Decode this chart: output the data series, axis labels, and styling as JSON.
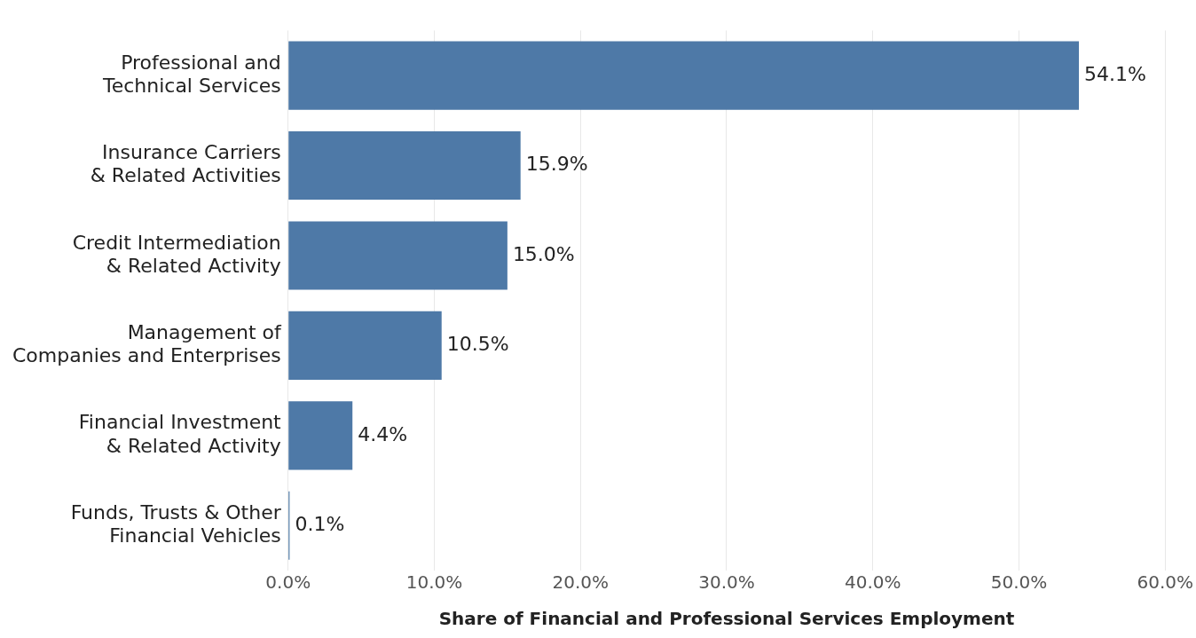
{
  "chart_data": {
    "type": "bar",
    "orientation": "horizontal",
    "categories": [
      "Professional and Technical Services",
      "Insurance Carriers & Related Activities",
      "Credit Intermediation & Related Activity",
      "Management of Companies and Enterprises",
      "Financial Investment & Related Activity",
      "Funds, Trusts & Other Financial Vehicles"
    ],
    "values": [
      54.1,
      15.9,
      15.0,
      10.5,
      4.4,
      0.1
    ],
    "value_labels": [
      "54.1%",
      "15.9%",
      "15.0%",
      "10.5%",
      "4.4%",
      "0.1%"
    ],
    "color": "#4e79a7",
    "xlabel": "Share of Financial and Professional Services Employment",
    "xlim": [
      0,
      60
    ],
    "xticks": [
      {
        "value": 0,
        "label": "0.0%"
      },
      {
        "value": 10,
        "label": "10.0%"
      },
      {
        "value": 20,
        "label": "20.0%"
      },
      {
        "value": 30,
        "label": "30.0%"
      },
      {
        "value": 40,
        "label": "40.0%"
      },
      {
        "value": 50,
        "label": "50.0%"
      },
      {
        "value": 60,
        "label": "60.0%"
      }
    ],
    "grid": "x",
    "legend": false
  }
}
